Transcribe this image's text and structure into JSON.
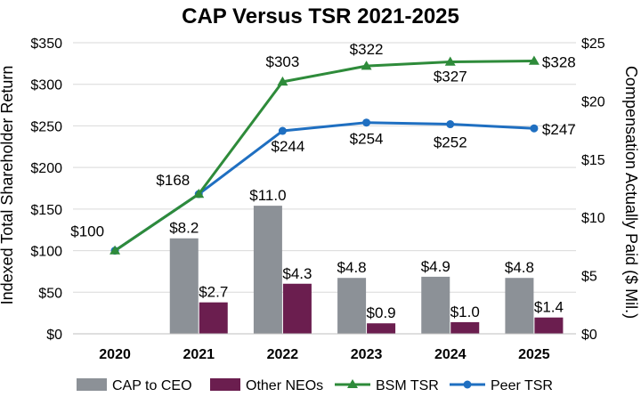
{
  "chart_data": {
    "type": "bar",
    "title": "CAP Versus TSR 2021-2025",
    "categories": [
      "2020",
      "2021",
      "2022",
      "2023",
      "2024",
      "2025"
    ],
    "y_left": {
      "label": "Indexed Total Shareholder Return",
      "range": [
        0,
        350
      ],
      "ticks": [
        "$0",
        "$50",
        "$100",
        "$150",
        "$200",
        "$250",
        "$300",
        "$350"
      ]
    },
    "y_right": {
      "label": "Compensation Actually Paid ($ Mil.)",
      "range": [
        0,
        25
      ],
      "ticks": [
        "$0",
        "$5",
        "$10",
        "$15",
        "$20",
        "$25"
      ]
    },
    "grid": true,
    "legend_position": "bottom",
    "bar_series": [
      {
        "name": "CAP to CEO",
        "color": "#8c9197",
        "axis": "right",
        "values": [
          null,
          8.2,
          11.0,
          4.8,
          4.9,
          4.8
        ],
        "labels": [
          "",
          "$8.2",
          "$11.0",
          "$4.8",
          "$4.9",
          "$4.8"
        ]
      },
      {
        "name": "Other NEOs",
        "color": "#6b1e4f",
        "axis": "right",
        "values": [
          null,
          2.7,
          4.3,
          0.9,
          1.0,
          1.4
        ],
        "labels": [
          "",
          "$2.7",
          "$4.3",
          "$0.9",
          "$1.0",
          "$1.4"
        ]
      }
    ],
    "line_series": [
      {
        "name": "BSM TSR",
        "color": "#2e8b3a",
        "marker": "triangle",
        "axis": "left",
        "values": [
          100,
          168,
          303,
          322,
          327,
          328
        ],
        "labels": [
          "$100",
          "$168",
          "$303",
          "$322",
          "$327",
          "$328"
        ]
      },
      {
        "name": "Peer TSR",
        "color": "#1f6fc1",
        "marker": "circle",
        "axis": "left",
        "values": [
          100,
          168,
          244,
          254,
          252,
          247
        ],
        "labels": [
          "",
          "",
          "$244",
          "$254",
          "$252",
          "$247"
        ]
      }
    ]
  }
}
